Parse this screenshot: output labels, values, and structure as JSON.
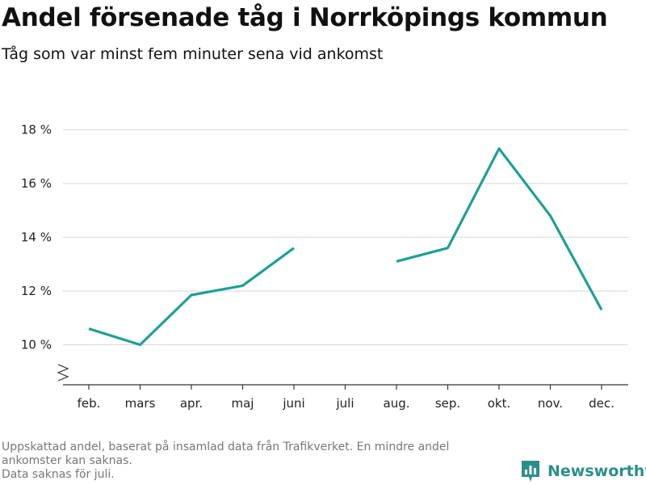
{
  "title": "Andel försenade tåg i Norrköpings kommun",
  "subtitle": "Tåg som var minst fem minuter sena vid ankomst",
  "footnote": {
    "line1": "Uppskattad andel, baserat på insamlad data från Trafikverket. En mindre andel",
    "line2": "ankomster kan saknas.",
    "line3": "Data saknas för juli."
  },
  "brand": {
    "name": "Newsworthy",
    "icon": "newsworthy-logo-icon",
    "color": "#2a8f8a"
  },
  "colors": {
    "line": "#1ea096",
    "grid": "#dddddd",
    "axis": "#333333"
  },
  "chart_data": {
    "type": "line",
    "categories": [
      "feb.",
      "mars",
      "apr.",
      "maj",
      "juni",
      "juli",
      "aug.",
      "sep.",
      "okt.",
      "nov.",
      "dec."
    ],
    "series": [
      {
        "values": [
          10.6,
          10.0,
          11.85,
          12.2,
          13.6,
          null,
          13.1,
          13.6,
          17.3,
          14.8,
          11.3
        ]
      }
    ],
    "yticks": [
      10,
      12,
      14,
      16,
      18
    ],
    "ytick_labels": [
      "10 %",
      "12 %",
      "14 %",
      "16 %",
      "18 %"
    ],
    "ylim": [
      8.5,
      18.5
    ],
    "y_axis_break": true,
    "grid": true,
    "xlabel": "",
    "ylabel": ""
  }
}
